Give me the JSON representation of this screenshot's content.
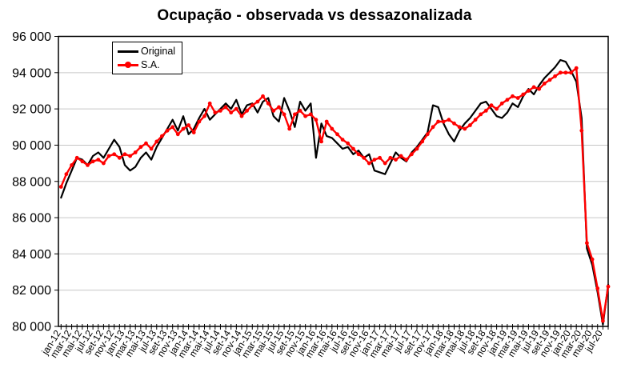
{
  "chart_data": {
    "type": "line",
    "title": "Ocupação - observada vs dessazonalizada",
    "xlabel": "",
    "ylabel": "",
    "ylim": [
      80000,
      96000
    ],
    "ytick_step": 2000,
    "y_tick_labels": [
      "96 000",
      "94 000",
      "92 000",
      "90 000",
      "88 000",
      "86 000",
      "84 000",
      "82 000",
      "80 000"
    ],
    "x_label_every": 2,
    "x_tick_labels": [
      "jan-12",
      "mar-12",
      "mai-12",
      "jul-12",
      "set-12",
      "nov-12",
      "jan-13",
      "mar-13",
      "mai-13",
      "jul-13",
      "set-13",
      "nov-13",
      "jan-14",
      "mar-14",
      "mai-14",
      "jul-14",
      "set-14",
      "nov-14",
      "jan-15",
      "mar-15",
      "mai-15",
      "jul-15",
      "set-15",
      "nov-15",
      "jan-16",
      "mar-16",
      "mai-16",
      "jul-16",
      "set-16",
      "nov-16",
      "jan-17",
      "mar-17",
      "mai-17",
      "jul-17",
      "set-17",
      "nov-17",
      "jan-18",
      "mar-18",
      "mai-18",
      "jul-18",
      "set-18",
      "nov-18",
      "jan-19",
      "mar-19",
      "mai-19",
      "jul-19",
      "set-19",
      "nov-19",
      "jan-20",
      "mar-20",
      "mai-20",
      "jul-20"
    ],
    "grid": "horizontal",
    "gridline_color": "#c6c6c6",
    "axis_color": "#000000",
    "legend_position": "top-left-inside",
    "series": [
      {
        "name": "Original",
        "color": "#000000",
        "marker": "none",
        "values": [
          87100,
          87900,
          88600,
          89300,
          89200,
          88900,
          89400,
          89600,
          89300,
          89800,
          90300,
          89900,
          88900,
          88600,
          88800,
          89300,
          89600,
          89200,
          89900,
          90400,
          90900,
          91400,
          90800,
          91600,
          90600,
          90900,
          91500,
          92000,
          91400,
          91700,
          92000,
          92300,
          92000,
          92500,
          91700,
          92200,
          92300,
          91800,
          92400,
          92600,
          91600,
          91300,
          92600,
          91900,
          91000,
          92400,
          91900,
          92300,
          89300,
          91200,
          90500,
          90400,
          90100,
          89800,
          89900,
          89500,
          89700,
          89300,
          89500,
          88600,
          88500,
          88400,
          89000,
          89600,
          89300,
          89100,
          89600,
          89900,
          90300,
          90700,
          92200,
          92100,
          91200,
          90600,
          90200,
          90800,
          91200,
          91500,
          91900,
          92300,
          92400,
          92000,
          91600,
          91500,
          91800,
          92300,
          92100,
          92700,
          93100,
          92800,
          93300,
          93700,
          94000,
          94300,
          94700,
          94600,
          94100,
          93500,
          91500,
          84300,
          83400,
          81900,
          80100,
          82300
        ]
      },
      {
        "name": "S.A.",
        "color": "#ff0000",
        "marker": "circle",
        "values": [
          87700,
          88400,
          88900,
          89300,
          89100,
          88900,
          89100,
          89200,
          89000,
          89400,
          89500,
          89300,
          89500,
          89400,
          89600,
          89900,
          90100,
          89800,
          90200,
          90500,
          90800,
          91000,
          90600,
          90900,
          91100,
          90700,
          91300,
          91600,
          92300,
          91800,
          91900,
          92100,
          91800,
          92000,
          91600,
          91900,
          92200,
          92400,
          92700,
          92300,
          91900,
          92100,
          91700,
          90900,
          91700,
          91900,
          91600,
          91700,
          91400,
          90200,
          91300,
          90900,
          90600,
          90300,
          90100,
          89800,
          89500,
          89300,
          89000,
          89200,
          89300,
          89000,
          89300,
          89200,
          89400,
          89200,
          89500,
          89800,
          90200,
          90600,
          91000,
          91300,
          91300,
          91400,
          91200,
          91000,
          90900,
          91100,
          91400,
          91700,
          91900,
          92200,
          92000,
          92300,
          92500,
          92700,
          92600,
          92800,
          93000,
          93200,
          93100,
          93400,
          93600,
          93800,
          94000,
          94000,
          94000,
          94250,
          90800,
          84600,
          83700,
          82100,
          80300,
          82200
        ]
      }
    ]
  }
}
